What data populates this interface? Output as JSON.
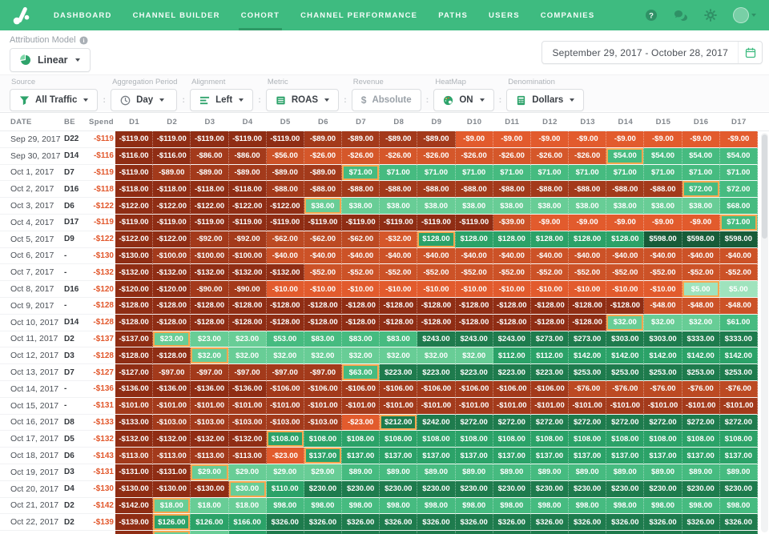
{
  "nav": {
    "items": [
      {
        "label": "DASHBOARD",
        "active": false
      },
      {
        "label": "CHANNEL BUILDER",
        "active": false
      },
      {
        "label": "COHORT",
        "active": true
      },
      {
        "label": "CHANNEL PERFORMANCE",
        "active": false
      },
      {
        "label": "PATHS",
        "active": false
      },
      {
        "label": "USERS",
        "active": false
      },
      {
        "label": "COMPANIES",
        "active": false
      }
    ]
  },
  "attribution": {
    "label": "Attribution Model",
    "value": "Linear"
  },
  "date_range": {
    "value": "September 29, 2017  -  October 28, 2017"
  },
  "filters": [
    {
      "label": "Source",
      "value": "All Traffic",
      "icon": "funnel-icon",
      "caret": true,
      "disabled": false
    },
    {
      "label": "Aggregation Period",
      "value": "Day",
      "icon": "clock-icon",
      "caret": true,
      "disabled": false
    },
    {
      "label": "Alignment",
      "value": "Left",
      "icon": "align-left-icon",
      "caret": true,
      "disabled": false
    },
    {
      "label": "Metric",
      "value": "ROAS",
      "icon": "metric-icon",
      "caret": true,
      "disabled": false
    },
    {
      "label": "Revenue",
      "value": "Absolute",
      "icon": "dollar-icon",
      "caret": false,
      "disabled": true
    },
    {
      "label": "HeatMap",
      "value": "ON",
      "icon": "palette-icon",
      "caret": true,
      "disabled": false
    },
    {
      "label": "Denomination",
      "value": "Dollars",
      "icon": "calculator-icon",
      "caret": true,
      "disabled": false
    }
  ],
  "table": {
    "fixed_headers": [
      "DATE",
      "BE",
      "Spend"
    ],
    "day_headers": [
      "D1",
      "D2",
      "D3",
      "D4",
      "D5",
      "D6",
      "D7",
      "D8",
      "D9",
      "D10",
      "D11",
      "D12",
      "D13",
      "D14",
      "D15",
      "D16",
      "D17"
    ],
    "rows": [
      {
        "date": "Sep 29, 2017",
        "be": "D22",
        "spend": -119,
        "values": [
          -119,
          -119,
          -119,
          -119,
          -119,
          -89,
          -89,
          -89,
          -89,
          -9,
          -9,
          -9,
          -9,
          -9,
          -9,
          -9,
          -9
        ]
      },
      {
        "date": "Sep 30, 2017",
        "be": "D14",
        "spend": -116,
        "values": [
          -116,
          -116,
          -86,
          -86,
          -56,
          -26,
          -26,
          -26,
          -26,
          -26,
          -26,
          -26,
          -26,
          54,
          54,
          54,
          54
        ]
      },
      {
        "date": "Oct 1, 2017",
        "be": "D7",
        "spend": -119,
        "values": [
          -119,
          -89,
          -89,
          -89,
          -89,
          -89,
          71,
          71,
          71,
          71,
          71,
          71,
          71,
          71,
          71,
          71,
          71
        ]
      },
      {
        "date": "Oct 2, 2017",
        "be": "D16",
        "spend": -118,
        "values": [
          -118,
          -118,
          -118,
          -118,
          -88,
          -88,
          -88,
          -88,
          -88,
          -88,
          -88,
          -88,
          -88,
          -88,
          -88,
          72,
          72
        ]
      },
      {
        "date": "Oct 3, 2017",
        "be": "D6",
        "spend": -122,
        "values": [
          -122,
          -122,
          -122,
          -122,
          -122,
          38,
          38,
          38,
          38,
          38,
          38,
          38,
          38,
          38,
          38,
          38,
          68
        ]
      },
      {
        "date": "Oct 4, 2017",
        "be": "D17",
        "spend": -119,
        "values": [
          -119,
          -119,
          -119,
          -119,
          -119,
          -119,
          -119,
          -119,
          -119,
          -119,
          -39,
          -9,
          -9,
          -9,
          -9,
          -9,
          71
        ]
      },
      {
        "date": "Oct 5, 2017",
        "be": "D9",
        "spend": -122,
        "values": [
          -122,
          -122,
          -92,
          -92,
          -62,
          -62,
          -62,
          -32,
          128,
          128,
          128,
          128,
          128,
          128,
          598,
          598,
          598
        ]
      },
      {
        "date": "Oct 6, 2017",
        "be": "-",
        "spend": -130,
        "values": [
          -130,
          -100,
          -100,
          -100,
          -40,
          -40,
          -40,
          -40,
          -40,
          -40,
          -40,
          -40,
          -40,
          -40,
          -40,
          -40,
          -40
        ]
      },
      {
        "date": "Oct 7, 2017",
        "be": "-",
        "spend": -132,
        "values": [
          -132,
          -132,
          -132,
          -132,
          -132,
          -52,
          -52,
          -52,
          -52,
          -52,
          -52,
          -52,
          -52,
          -52,
          -52,
          -52,
          -52
        ]
      },
      {
        "date": "Oct 8, 2017",
        "be": "D16",
        "spend": -120,
        "values": [
          -120,
          -120,
          -90,
          -90,
          -10,
          -10,
          -10,
          -10,
          -10,
          -10,
          -10,
          -10,
          -10,
          -10,
          -10,
          5,
          5
        ]
      },
      {
        "date": "Oct 9, 2017",
        "be": "-",
        "spend": -128,
        "values": [
          -128,
          -128,
          -128,
          -128,
          -128,
          -128,
          -128,
          -128,
          -128,
          -128,
          -128,
          -128,
          -128,
          -128,
          -48,
          -48,
          -48
        ]
      },
      {
        "date": "Oct 10, 2017",
        "be": "D14",
        "spend": -128,
        "values": [
          -128,
          -128,
          -128,
          -128,
          -128,
          -128,
          -128,
          -128,
          -128,
          -128,
          -128,
          -128,
          -128,
          32,
          32,
          32,
          61
        ]
      },
      {
        "date": "Oct 11, 2017",
        "be": "D2",
        "spend": -137,
        "values": [
          -137,
          23,
          23,
          23,
          53,
          83,
          83,
          83,
          243,
          243,
          243,
          273,
          273,
          303,
          303,
          333,
          333
        ]
      },
      {
        "date": "Oct 12, 2017",
        "be": "D3",
        "spend": -128,
        "values": [
          -128,
          -128,
          32,
          32,
          32,
          32,
          32,
          32,
          32,
          32,
          112,
          112,
          142,
          142,
          142,
          142,
          142
        ]
      },
      {
        "date": "Oct 13, 2017",
        "be": "D7",
        "spend": -127,
        "values": [
          -127,
          -97,
          -97,
          -97,
          -97,
          -97,
          63,
          223,
          223,
          223,
          223,
          223,
          253,
          253,
          253,
          253,
          253
        ]
      },
      {
        "date": "Oct 14, 2017",
        "be": "-",
        "spend": -136,
        "values": [
          -136,
          -136,
          -136,
          -136,
          -106,
          -106,
          -106,
          -106,
          -106,
          -106,
          -106,
          -106,
          -76,
          -76,
          -76,
          -76,
          -76
        ]
      },
      {
        "date": "Oct 15, 2017",
        "be": "-",
        "spend": -131,
        "values": [
          -101,
          -101,
          -101,
          -101,
          -101,
          -101,
          -101,
          -101,
          -101,
          -101,
          -101,
          -101,
          -101,
          -101,
          -101,
          -101,
          -101
        ]
      },
      {
        "date": "Oct 16, 2017",
        "be": "D8",
        "spend": -133,
        "values": [
          -133,
          -103,
          -103,
          -103,
          -103,
          -103,
          -23,
          212,
          242,
          272,
          272,
          272,
          272,
          272,
          272,
          272,
          272
        ]
      },
      {
        "date": "Oct 17, 2017",
        "be": "D5",
        "spend": -132,
        "values": [
          -132,
          -132,
          -132,
          -132,
          108,
          108,
          108,
          108,
          108,
          108,
          108,
          108,
          108,
          108,
          108,
          108,
          108
        ]
      },
      {
        "date": "Oct 18, 2017",
        "be": "D6",
        "spend": -143,
        "values": [
          -113,
          -113,
          -113,
          -113,
          -23,
          137,
          137,
          137,
          137,
          137,
          137,
          137,
          137,
          137,
          137,
          137,
          137
        ]
      },
      {
        "date": "Oct 19, 2017",
        "be": "D3",
        "spend": -131,
        "values": [
          -131,
          -131,
          29,
          29,
          29,
          29,
          89,
          89,
          89,
          89,
          89,
          89,
          89,
          89,
          89,
          89,
          89
        ]
      },
      {
        "date": "Oct 20, 2017",
        "be": "D4",
        "spend": -130,
        "values": [
          -130,
          -130,
          -130,
          30,
          110,
          230,
          230,
          230,
          230,
          230,
          230,
          230,
          230,
          230,
          230,
          230,
          230
        ]
      },
      {
        "date": "Oct 21, 2017",
        "be": "D2",
        "spend": -142,
        "values": [
          -142,
          18,
          18,
          18,
          98,
          98,
          98,
          98,
          98,
          98,
          98,
          98,
          98,
          98,
          98,
          98,
          98
        ]
      },
      {
        "date": "Oct 22, 2017",
        "be": "D2",
        "spend": -139,
        "values": [
          -139,
          126,
          126,
          166,
          326,
          326,
          326,
          326,
          326,
          326,
          326,
          326,
          326,
          326,
          326,
          326,
          326
        ]
      }
    ],
    "partial_row": {
      "be_index": 2,
      "colors": [
        "#8F2D14",
        "#68CD96",
        "#68CD96",
        "#2BA268",
        "#1E7B4D",
        "#1E7B4D",
        "#1E7B4D",
        "#1E7B4D",
        "#1E7B4D",
        "#1E7B4D",
        "#1E7B4D",
        "#1E7B4D",
        "#1E7B4D",
        "#1E7B4D",
        "#1E7B4D",
        "#1E7B4D",
        "#1E7B4D"
      ]
    }
  },
  "colors": {
    "nav_green": "#3EBB80",
    "accent_green": "#2EA36B",
    "active_underline": "#2E9A66",
    "spend_text": "#E2572B",
    "be_border": "#F7A64F",
    "neg_scale": [
      "#E25B2D",
      "#D5572A",
      "#CC5227",
      "#BC4A23",
      "#A33A1B",
      "#8F2D14"
    ],
    "pos_scale": [
      "#9FE3BD",
      "#68CD96",
      "#46BB80",
      "#2BA268",
      "#1E7B4D",
      "#175C39"
    ]
  }
}
